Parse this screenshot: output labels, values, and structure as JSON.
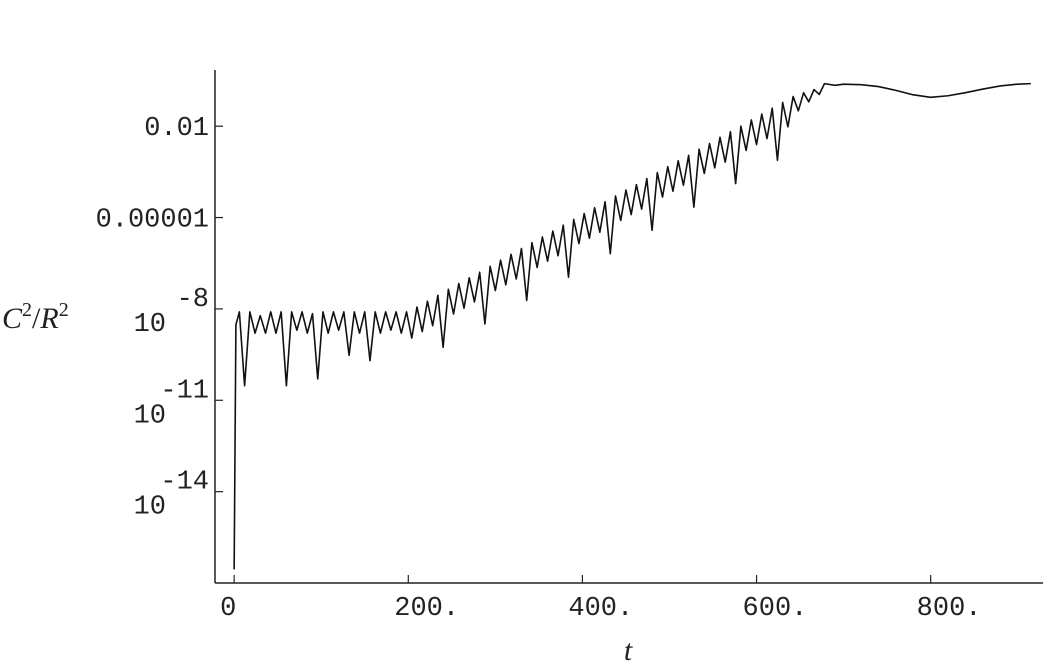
{
  "chart_data": {
    "type": "line",
    "log_y": true,
    "color": "#111111",
    "xlabel": "t",
    "ylabel_parts": [
      "C",
      "2",
      "/",
      "R",
      "2"
    ],
    "xlim": [
      -22,
      929
    ],
    "ylim": [
      1e-17,
      0.7
    ],
    "xticks": [
      0,
      {
        "value": 200,
        "label": "200."
      },
      {
        "value": 400,
        "label": "400."
      },
      {
        "value": 600,
        "label": "600."
      },
      {
        "value": 800,
        "label": "800."
      }
    ],
    "yticks": [
      0.01,
      1e-05,
      {
        "value": 1e-08,
        "label": "10",
        "exponent": "-8"
      },
      {
        "value": 1e-11,
        "label": "10",
        "exponent": "-11"
      },
      {
        "value": 1e-14,
        "label": "10",
        "exponent": "-14"
      }
    ],
    "x": [
      0,
      2,
      6,
      12,
      18,
      24,
      30,
      36,
      42,
      48,
      54,
      60,
      66,
      72,
      78,
      84,
      90,
      96,
      102,
      108,
      114,
      120,
      126,
      132,
      138,
      144,
      150,
      156,
      162,
      168,
      174,
      180,
      186,
      192,
      198,
      204,
      210,
      216,
      222,
      228,
      234,
      240,
      246,
      252,
      258,
      264,
      270,
      276,
      282,
      288,
      294,
      300,
      306,
      312,
      318,
      324,
      330,
      336,
      342,
      348,
      354,
      360,
      366,
      372,
      378,
      384,
      390,
      396,
      402,
      408,
      414,
      420,
      426,
      432,
      438,
      444,
      450,
      456,
      462,
      468,
      474,
      480,
      486,
      492,
      498,
      504,
      510,
      516,
      522,
      528,
      534,
      540,
      546,
      552,
      558,
      564,
      570,
      576,
      582,
      588,
      594,
      600,
      606,
      612,
      618,
      624,
      630,
      636,
      642,
      648,
      654,
      660,
      666,
      672,
      678,
      690,
      700,
      720,
      740,
      760,
      780,
      800,
      820,
      840,
      860,
      880,
      900,
      915
    ],
    "values": [
      2.8e-17,
      3e-09,
      8e-09,
      3e-11,
      8e-09,
      1.6e-09,
      6e-09,
      1.6e-09,
      8e-09,
      1.6e-09,
      8e-09,
      3e-11,
      8e-09,
      2e-09,
      8e-09,
      1.6e-09,
      7e-09,
      5e-11,
      8e-09,
      1.6e-09,
      8e-09,
      2e-09,
      8e-09,
      3e-10,
      8e-09,
      1.6e-09,
      8e-09,
      2e-10,
      8e-09,
      1.6e-09,
      8e-09,
      2e-09,
      8e-09,
      1.6e-09,
      8e-09,
      1.1e-09,
      1.15e-08,
      1.8e-09,
      1.8e-08,
      2.8e-09,
      2.8e-08,
      5.5e-10,
      4.4e-08,
      6.8e-09,
      6.8e-08,
      1.05e-08,
      1.05e-07,
      1.7e-08,
      1.6e-07,
      3.2e-09,
      2.5e-07,
      4e-08,
      4e-07,
      6.2e-08,
      6.2e-07,
      9.6e-08,
      9.6e-07,
      1.9e-08,
      1.5e-06,
      2.3e-07,
      2.3e-06,
      3.7e-07,
      3.6e-06,
      5.6e-07,
      5.6e-06,
      1.1e-07,
      8.7e-06,
      1.4e-06,
      1.35e-05,
      2.1e-06,
      2.1e-05,
      3.3e-06,
      3.3e-05,
      6.5e-07,
      5.1e-05,
      8e-06,
      8e-05,
      1.25e-05,
      0.00012,
      1.9e-05,
      0.00019,
      3.8e-06,
      0.0003,
      4.7e-05,
      0.00047,
      7.3e-05,
      0.00073,
      0.000115,
      0.0011,
      2.2e-05,
      0.00175,
      0.00028,
      0.0027,
      0.00043,
      0.0043,
      0.00066,
      0.0066,
      0.00013,
      0.01,
      0.0016,
      0.016,
      0.0025,
      0.025,
      0.0039,
      0.039,
      0.00076,
      0.06,
      0.0095,
      0.094,
      0.032,
      0.125,
      0.063,
      0.16,
      0.11,
      0.25,
      0.22,
      0.24,
      0.23,
      0.2,
      0.15,
      0.107,
      0.089,
      0.1,
      0.126,
      0.166,
      0.21,
      0.24,
      0.25
    ]
  }
}
